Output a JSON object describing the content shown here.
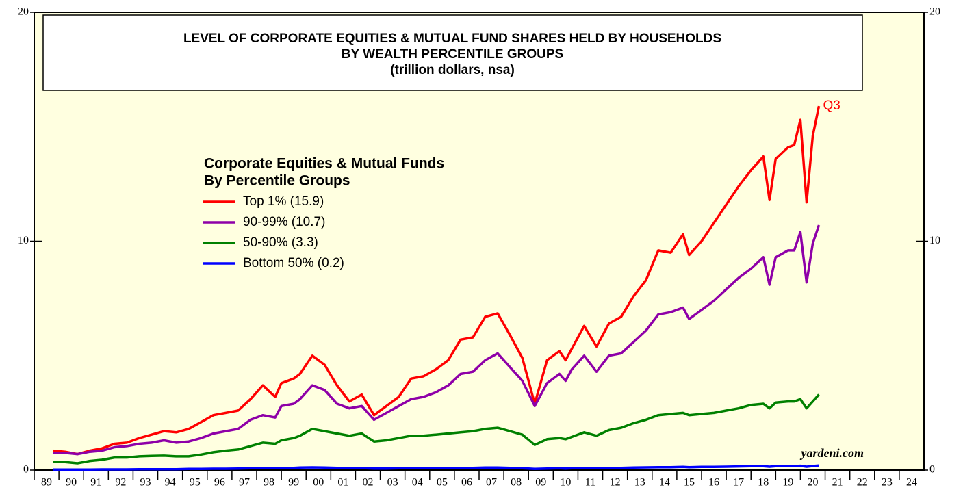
{
  "chart_data": {
    "type": "line",
    "title": [
      "LEVEL OF CORPORATE EQUITIES & MUTUAL FUND SHARES HELD BY HOUSEHOLDS",
      "BY WEALTH PERCENTILE GROUPS",
      "(trillion dollars, nsa)"
    ],
    "legend_title": [
      "Corporate Equities & Mutual Funds",
      "By Percentile Groups"
    ],
    "annotation": "Q3",
    "source": "yardeni.com",
    "xlim": [
      1989,
      2025
    ],
    "xticks": [
      {
        "value": 1989,
        "label": "89"
      },
      {
        "value": 1990,
        "label": "90"
      },
      {
        "value": 1991,
        "label": "91"
      },
      {
        "value": 1992,
        "label": "92"
      },
      {
        "value": 1993,
        "label": "93"
      },
      {
        "value": 1994,
        "label": "94"
      },
      {
        "value": 1995,
        "label": "95"
      },
      {
        "value": 1996,
        "label": "96"
      },
      {
        "value": 1997,
        "label": "97"
      },
      {
        "value": 1998,
        "label": "98"
      },
      {
        "value": 1999,
        "label": "99"
      },
      {
        "value": 2000,
        "label": "00"
      },
      {
        "value": 2001,
        "label": "01"
      },
      {
        "value": 2002,
        "label": "02"
      },
      {
        "value": 2003,
        "label": "03"
      },
      {
        "value": 2004,
        "label": "04"
      },
      {
        "value": 2005,
        "label": "05"
      },
      {
        "value": 2006,
        "label": "06"
      },
      {
        "value": 2007,
        "label": "07"
      },
      {
        "value": 2008,
        "label": "08"
      },
      {
        "value": 2009,
        "label": "09"
      },
      {
        "value": 2010,
        "label": "10"
      },
      {
        "value": 2011,
        "label": "11"
      },
      {
        "value": 2012,
        "label": "12"
      },
      {
        "value": 2013,
        "label": "13"
      },
      {
        "value": 2014,
        "label": "14"
      },
      {
        "value": 2015,
        "label": "15"
      },
      {
        "value": 2016,
        "label": "16"
      },
      {
        "value": 2017,
        "label": "17"
      },
      {
        "value": 2018,
        "label": "18"
      },
      {
        "value": 2019,
        "label": "19"
      },
      {
        "value": 2020,
        "label": "20"
      },
      {
        "value": 2021,
        "label": "21"
      },
      {
        "value": 2022,
        "label": "22"
      },
      {
        "value": 2023,
        "label": "23"
      },
      {
        "value": 2024,
        "label": "24"
      }
    ],
    "ylim": [
      0,
      20
    ],
    "yticks": [
      0,
      10,
      20
    ],
    "x": [
      1989.75,
      1990.25,
      1990.75,
      1991.25,
      1991.75,
      1992.25,
      1992.75,
      1993.25,
      1993.75,
      1994.25,
      1994.75,
      1995.25,
      1995.75,
      1996.25,
      1996.75,
      1997.25,
      1997.75,
      1998.25,
      1998.75,
      1999.0,
      1999.5,
      1999.75,
      2000.25,
      2000.75,
      2001.25,
      2001.75,
      2002.25,
      2002.75,
      2003.25,
      2003.75,
      2004.25,
      2004.75,
      2005.25,
      2005.75,
      2006.25,
      2006.75,
      2007.25,
      2007.75,
      2008.25,
      2008.75,
      2009.25,
      2009.75,
      2010.25,
      2010.5,
      2010.75,
      2011.25,
      2011.75,
      2012.25,
      2012.75,
      2013.25,
      2013.75,
      2014.25,
      2014.75,
      2015.25,
      2015.5,
      2016.0,
      2016.5,
      2017.0,
      2017.5,
      2018.0,
      2018.5,
      2018.75,
      2019.0,
      2019.5,
      2019.75,
      2020.0,
      2020.25,
      2020.5,
      2020.75
    ],
    "series": [
      {
        "name": "Top 1% (15.9)",
        "color": "#ff0000",
        "values": [
          0.85,
          0.8,
          0.7,
          0.85,
          0.95,
          1.15,
          1.2,
          1.4,
          1.55,
          1.7,
          1.65,
          1.8,
          2.1,
          2.4,
          2.5,
          2.6,
          3.1,
          3.7,
          3.2,
          3.8,
          4.0,
          4.2,
          5.0,
          4.6,
          3.7,
          3.0,
          3.3,
          2.4,
          2.8,
          3.2,
          4.0,
          4.1,
          4.4,
          4.8,
          5.7,
          5.8,
          6.7,
          6.85,
          5.9,
          4.9,
          2.9,
          4.8,
          5.2,
          4.8,
          5.3,
          6.3,
          5.4,
          6.4,
          6.7,
          7.6,
          8.3,
          9.6,
          9.5,
          10.3,
          9.4,
          10.0,
          10.8,
          11.6,
          12.4,
          13.1,
          13.7,
          11.8,
          13.6,
          14.1,
          14.2,
          15.3,
          11.7,
          14.6,
          15.9
        ]
      },
      {
        "name": "90-99% (10.7)",
        "color": "#8e00a8",
        "values": [
          0.75,
          0.75,
          0.7,
          0.8,
          0.85,
          1.0,
          1.05,
          1.15,
          1.2,
          1.3,
          1.2,
          1.25,
          1.4,
          1.6,
          1.7,
          1.8,
          2.2,
          2.4,
          2.3,
          2.8,
          2.9,
          3.1,
          3.7,
          3.5,
          2.9,
          2.7,
          2.8,
          2.2,
          2.5,
          2.8,
          3.1,
          3.2,
          3.4,
          3.7,
          4.2,
          4.3,
          4.8,
          5.1,
          4.5,
          3.9,
          2.8,
          3.8,
          4.2,
          3.9,
          4.4,
          5.0,
          4.3,
          5.0,
          5.1,
          5.6,
          6.1,
          6.8,
          6.9,
          7.1,
          6.6,
          7.0,
          7.4,
          7.9,
          8.4,
          8.8,
          9.3,
          8.1,
          9.3,
          9.6,
          9.6,
          10.4,
          8.2,
          9.9,
          10.7
        ]
      },
      {
        "name": "50-90% (3.3)",
        "color": "#008000",
        "values": [
          0.35,
          0.35,
          0.3,
          0.4,
          0.45,
          0.55,
          0.55,
          0.6,
          0.62,
          0.63,
          0.6,
          0.6,
          0.68,
          0.78,
          0.85,
          0.9,
          1.05,
          1.2,
          1.15,
          1.3,
          1.4,
          1.5,
          1.8,
          1.7,
          1.6,
          1.5,
          1.6,
          1.25,
          1.3,
          1.4,
          1.5,
          1.5,
          1.55,
          1.6,
          1.65,
          1.7,
          1.8,
          1.85,
          1.7,
          1.55,
          1.1,
          1.35,
          1.4,
          1.35,
          1.45,
          1.65,
          1.5,
          1.75,
          1.85,
          2.05,
          2.2,
          2.4,
          2.45,
          2.5,
          2.4,
          2.45,
          2.5,
          2.6,
          2.7,
          2.85,
          2.9,
          2.7,
          2.95,
          3.0,
          3.0,
          3.1,
          2.7,
          3.0,
          3.3
        ]
      },
      {
        "name": "Bottom 50% (0.2)",
        "color": "#0000ff",
        "values": [
          0.02,
          0.02,
          0.02,
          0.02,
          0.03,
          0.03,
          0.03,
          0.04,
          0.04,
          0.04,
          0.04,
          0.05,
          0.05,
          0.06,
          0.06,
          0.07,
          0.08,
          0.09,
          0.09,
          0.1,
          0.1,
          0.11,
          0.12,
          0.11,
          0.1,
          0.09,
          0.09,
          0.07,
          0.07,
          0.08,
          0.08,
          0.08,
          0.09,
          0.09,
          0.1,
          0.1,
          0.11,
          0.11,
          0.1,
          0.08,
          0.05,
          0.07,
          0.08,
          0.07,
          0.08,
          0.09,
          0.08,
          0.09,
          0.1,
          0.11,
          0.12,
          0.13,
          0.13,
          0.14,
          0.13,
          0.14,
          0.14,
          0.15,
          0.16,
          0.17,
          0.17,
          0.15,
          0.17,
          0.18,
          0.18,
          0.19,
          0.15,
          0.18,
          0.2
        ]
      }
    ],
    "background": "#ffffe0"
  }
}
